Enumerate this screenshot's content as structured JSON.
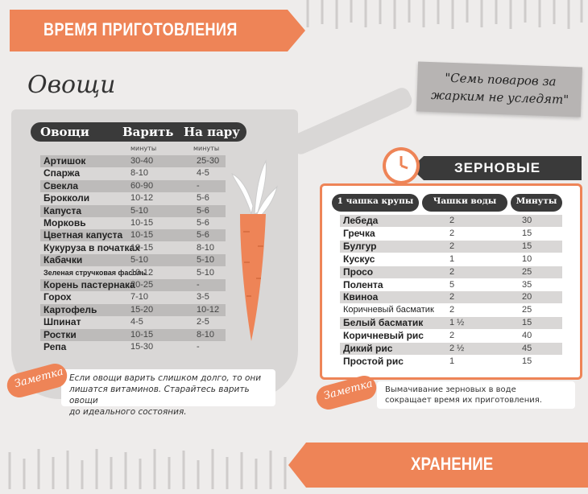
{
  "header": {
    "title": "ВРЕМЯ ПРИГОТОВЛЕНИЯ"
  },
  "vegetables": {
    "heading": "Овощи",
    "columns": [
      "Овощи",
      "Варить",
      "На пару"
    ],
    "units": [
      "минуты",
      "минуты"
    ],
    "rows": [
      {
        "name": "Артишок",
        "boil": "30-40",
        "steam": "25-30"
      },
      {
        "name": "Спаржа",
        "boil": "8-10",
        "steam": "4-5"
      },
      {
        "name": "Свекла",
        "boil": "60-90",
        "steam": "-"
      },
      {
        "name": "Брокколи",
        "boil": "10-12",
        "steam": "5-6"
      },
      {
        "name": "Капуста",
        "boil": "5-10",
        "steam": "5-6"
      },
      {
        "name": "Морковь",
        "boil": "10-15",
        "steam": "5-6"
      },
      {
        "name": "Цветная капуста",
        "boil": "10-15",
        "steam": "5-6"
      },
      {
        "name": "Кукуруза в початках",
        "boil": "10-15",
        "steam": "8-10"
      },
      {
        "name": "Кабачки",
        "boil": "5-10",
        "steam": "5-10"
      },
      {
        "name": "Зеленая стручковая фасоль",
        "boil": "10-12",
        "steam": "5-10"
      },
      {
        "name": "Корень пастернака",
        "boil": "20-25",
        "steam": "-"
      },
      {
        "name": "Горох",
        "boil": "7-10",
        "steam": "3-5"
      },
      {
        "name": "Картофель",
        "boil": "15-20",
        "steam": "10-12"
      },
      {
        "name": "Шпинат",
        "boil": "4-5",
        "steam": "2-5"
      },
      {
        "name": "Ростки",
        "boil": "10-15",
        "steam": "8-10"
      },
      {
        "name": "Репа",
        "boil": "15-30",
        "steam": "-"
      }
    ],
    "note_label": "Заметка",
    "note_line1": "Если овощи варить слишком долго, то они",
    "note_line2": "лишатся витаминов. Старайтесь варить овощи",
    "note_line3": "до идеального состояния."
  },
  "quote": {
    "line1": "\"Семь поваров за",
    "line2": "жарким не уследят\""
  },
  "grains": {
    "title": "ЗЕРНОВЫЕ",
    "columns": [
      "1 чашка крупы",
      "Чашки воды",
      "Минуты"
    ],
    "rows": [
      {
        "name": "Лебеда",
        "water": "2",
        "minutes": "30"
      },
      {
        "name": "Гречка",
        "water": "2",
        "minutes": "15"
      },
      {
        "name": "Булгур",
        "water": "2",
        "minutes": "15"
      },
      {
        "name": "Кускус",
        "water": "1",
        "minutes": "10"
      },
      {
        "name": "Просо",
        "water": "2",
        "minutes": "25"
      },
      {
        "name": "Полента",
        "water": "5",
        "minutes": "35"
      },
      {
        "name": "Квиноа",
        "water": "2",
        "minutes": "20"
      },
      {
        "name": "Коричневый басматик",
        "water": "2",
        "minutes": "25"
      },
      {
        "name": "Белый басматик",
        "water": "1 ½",
        "minutes": "15"
      },
      {
        "name": "Коричневый рис",
        "water": "2",
        "minutes": "40"
      },
      {
        "name": "Дикий рис",
        "water": "2 ½",
        "minutes": "45"
      },
      {
        "name": "Простой рис",
        "water": "1",
        "minutes": "15"
      }
    ],
    "note_label": "Заметка",
    "note_line1": "Вымачивание зерновых в воде",
    "note_line2": "сокращает время их приготовления."
  },
  "footer": {
    "title": "ХРАНЕНИЕ"
  },
  "colors": {
    "accent": "#ee8457",
    "dark": "#3a3a3a",
    "pot": "#d9d7d6"
  }
}
